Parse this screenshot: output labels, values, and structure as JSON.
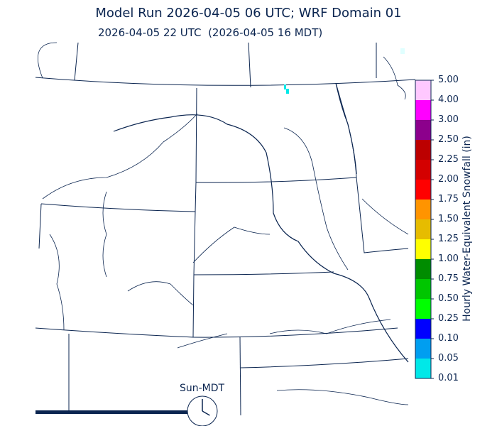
{
  "title": "Model Run 2026-04-05 06 UTC; WRF Domain 01",
  "subtitle": "2026-04-05 22 UTC  (2026-04-05 16 MDT)",
  "clock": {
    "label": "Sun-MDT",
    "hour": 16,
    "minute": 0,
    "progress_bar_color": "#0b2550"
  },
  "colorbar": {
    "title": "Hourly Water-Equivalent Snowfall (in)",
    "ticks": [
      "0.01",
      "0.05",
      "0.10",
      "0.25",
      "0.50",
      "0.75",
      "1.00",
      "1.25",
      "1.50",
      "1.75",
      "2.00",
      "2.25",
      "2.50",
      "3.00",
      "4.00",
      "5.00"
    ],
    "colors": [
      "#00e8e8",
      "#009ef0",
      "#0000ff",
      "#00ff00",
      "#00c600",
      "#008c00",
      "#ffff00",
      "#e6bc00",
      "#ff9400",
      "#ff0000",
      "#d40000",
      "#bc0000",
      "#8c008c",
      "#ff00ff",
      "#ffc8ff"
    ]
  },
  "map": {
    "line_color": "#0b2550",
    "precip_color": "#00e8e8"
  }
}
